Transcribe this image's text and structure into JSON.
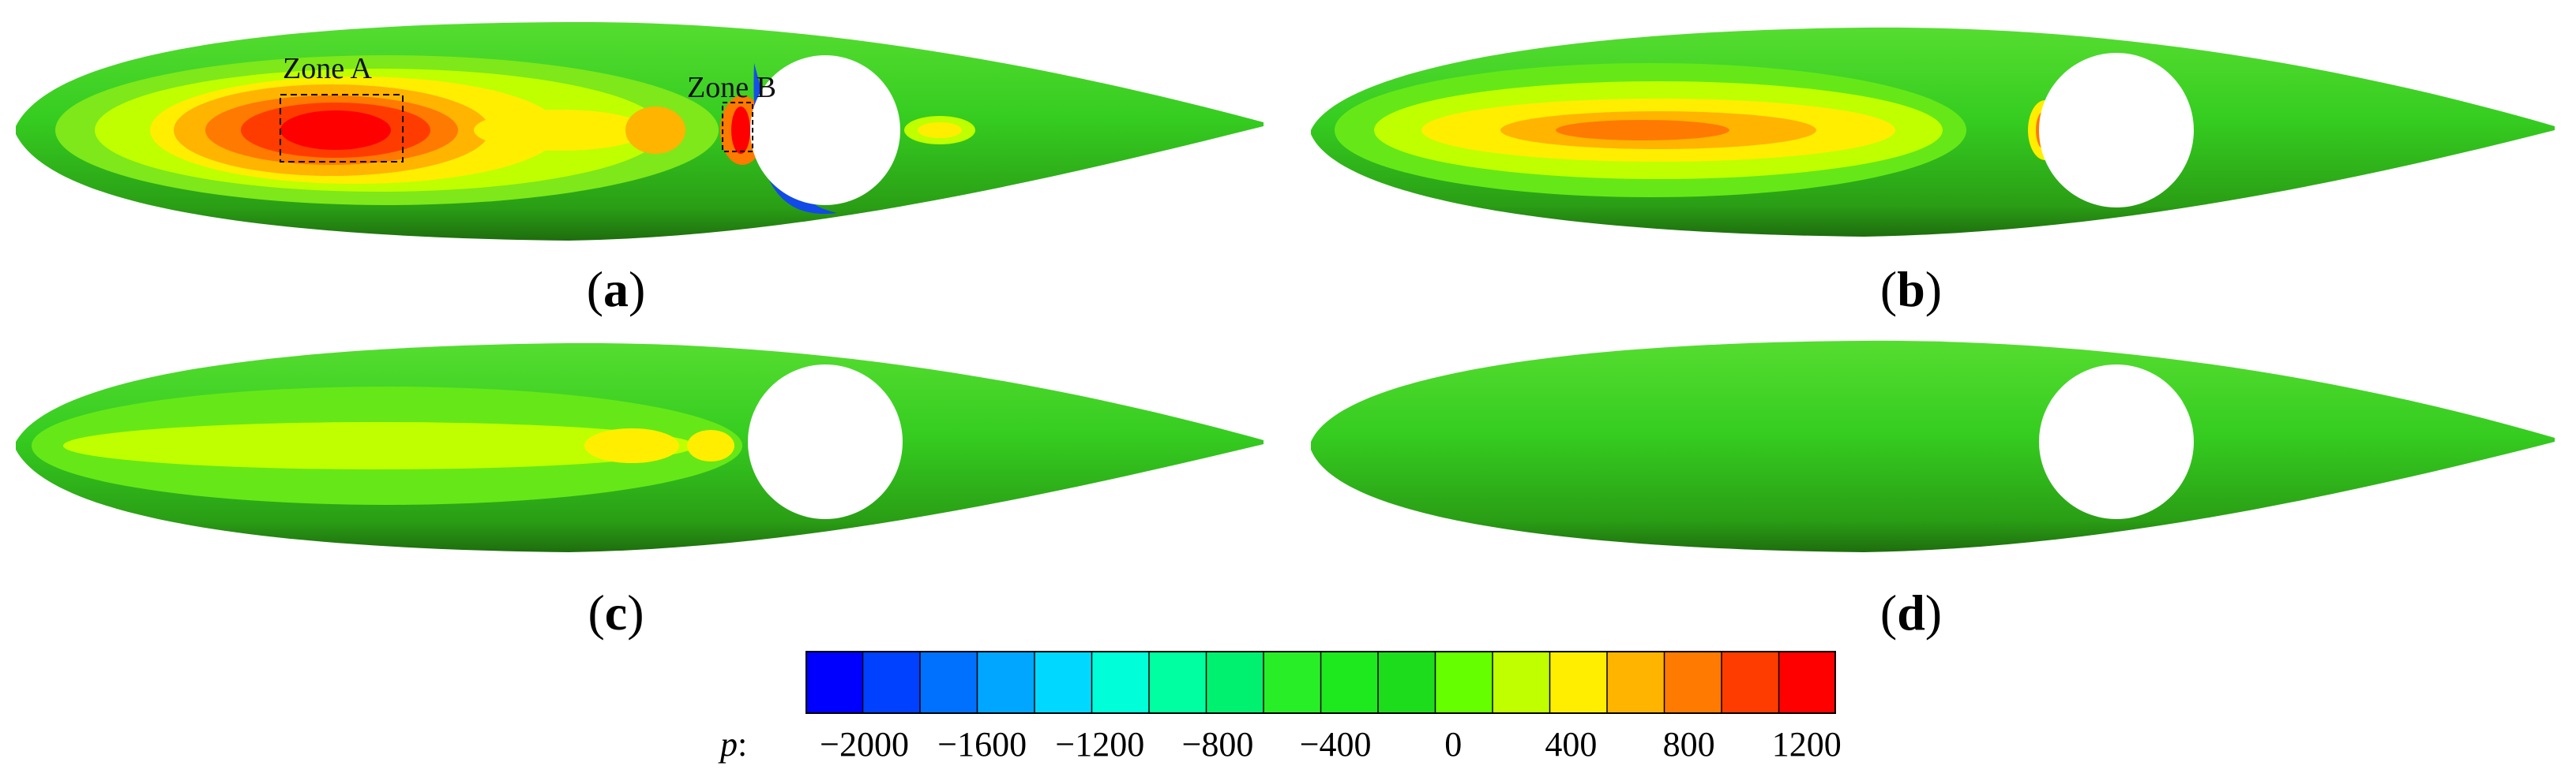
{
  "panels": [
    {
      "id": "a",
      "label": "a",
      "zones": [
        {
          "name": "Zone A"
        },
        {
          "name": "Zone B"
        }
      ]
    },
    {
      "id": "b",
      "label": "b"
    },
    {
      "id": "c",
      "label": "c"
    },
    {
      "id": "d",
      "label": "d"
    }
  ],
  "colorbar": {
    "variable": "p",
    "separator": ":",
    "tick_labels": [
      "−2000",
      "−1600",
      "−1200",
      "−800",
      "−400",
      "0",
      "400",
      "800",
      "1200"
    ],
    "tick_values": [
      -2000,
      -1600,
      -1200,
      -800,
      -400,
      0,
      400,
      800,
      1200
    ],
    "range": [
      -2200,
      1300
    ],
    "level_colors": [
      "#0000ff",
      "#0040ff",
      "#0070ff",
      "#00a6ff",
      "#00d8ff",
      "#00ffd8",
      "#00ffa0",
      "#00f070",
      "#28ee28",
      "#1ee81e",
      "#1cdc1c",
      "#66ff00",
      "#bfff00",
      "#ffee00",
      "#ffb400",
      "#ff7a00",
      "#ff3c00",
      "#ff0000"
    ]
  },
  "colors": {
    "body_base": "#33cc1f",
    "body_shadow": "#228a12",
    "hole": "#ffffff"
  }
}
